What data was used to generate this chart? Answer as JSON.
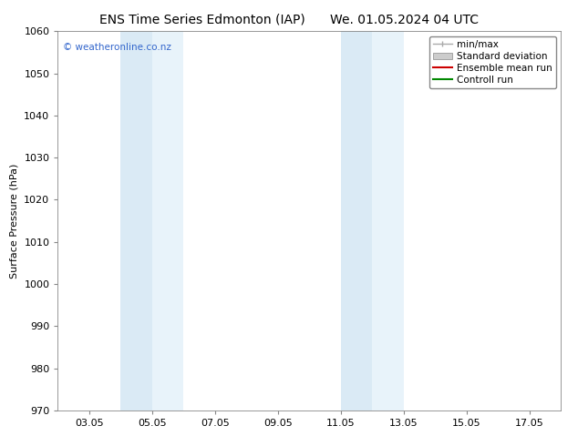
{
  "title_left": "ENS Time Series Edmonton (IAP)",
  "title_right": "We. 01.05.2024 04 UTC",
  "ylabel": "Surface Pressure (hPa)",
  "ylim": [
    970,
    1060
  ],
  "yticks": [
    970,
    980,
    990,
    1000,
    1010,
    1020,
    1030,
    1040,
    1050,
    1060
  ],
  "xtick_labels": [
    "03.05",
    "05.05",
    "07.05",
    "09.05",
    "11.05",
    "13.05",
    "15.05",
    "17.05"
  ],
  "xtick_positions": [
    3,
    5,
    7,
    9,
    11,
    13,
    15,
    17
  ],
  "xlim": [
    2,
    18
  ],
  "shaded_bands": [
    {
      "x_start": 4.0,
      "x_end": 5.0,
      "color": "#daeaf5"
    },
    {
      "x_start": 5.0,
      "x_end": 6.0,
      "color": "#e8f3fa"
    },
    {
      "x_start": 11.0,
      "x_end": 12.0,
      "color": "#daeaf5"
    },
    {
      "x_start": 12.0,
      "x_end": 13.0,
      "color": "#e8f3fa"
    }
  ],
  "watermark": "© weatheronline.co.nz",
  "watermark_color": "#3366cc",
  "background_color": "#ffffff",
  "plot_bg_color": "#ffffff",
  "legend_items": [
    {
      "label": "min/max",
      "color": "#aaaaaa",
      "type": "errorbar"
    },
    {
      "label": "Standard deviation",
      "color": "#cccccc",
      "type": "fill"
    },
    {
      "label": "Ensemble mean run",
      "color": "#cc0000",
      "type": "line"
    },
    {
      "label": "Controll run",
      "color": "#008800",
      "type": "line"
    }
  ],
  "grid_color": "#dddddd",
  "tick_color": "#000000",
  "font_size_title": 10,
  "font_size_axis": 8,
  "font_size_legend": 7.5,
  "font_size_watermark": 7.5,
  "font_family": "DejaVu Sans"
}
